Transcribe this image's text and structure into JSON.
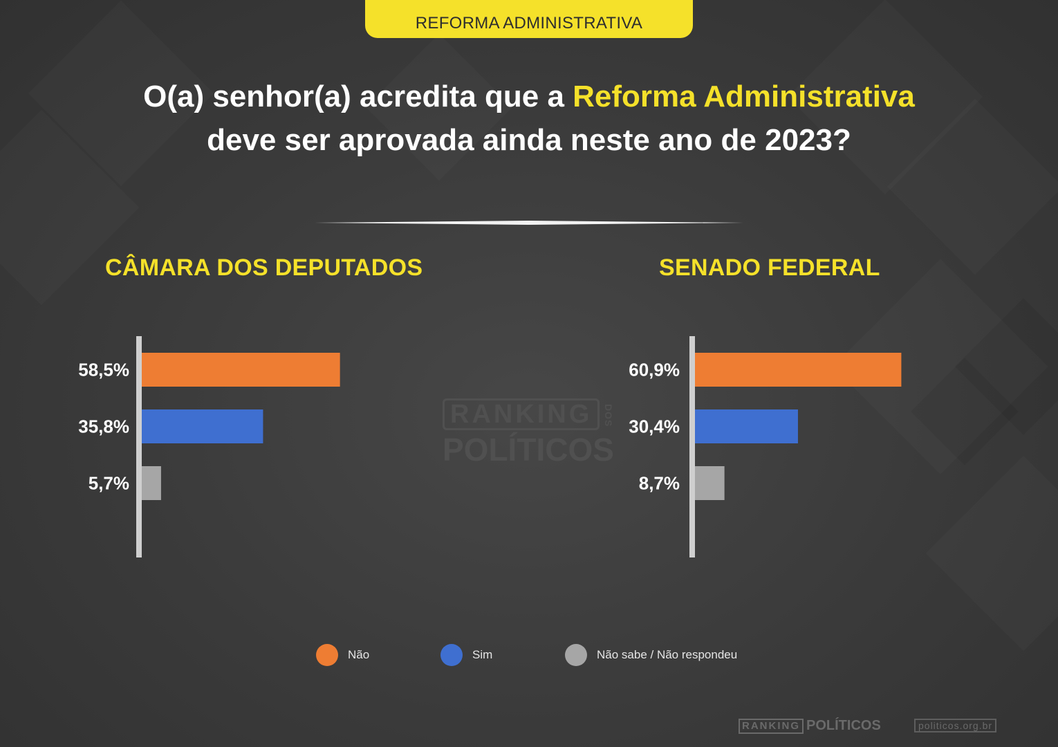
{
  "header": {
    "badge": "REFORMA ADMINISTRATIVA"
  },
  "question": {
    "part1": "O(a) senhor(a) acredita que a ",
    "highlight": "Reforma Administrativa",
    "part2": "deve ser aprovada ainda neste ano de 2023?"
  },
  "colors": {
    "accent": "#f5e12a",
    "nao": "#ee7d33",
    "sim": "#3f6fd0",
    "nao_sabe": "#a6a6a6",
    "axis": "#cfcfcf"
  },
  "chart_data": [
    {
      "type": "bar",
      "orientation": "horizontal",
      "title": "CÂMARA DOS DEPUTADOS",
      "categories": [
        "Não",
        "Sim",
        "Não sabe / Não respondeu"
      ],
      "values": [
        58.5,
        35.8,
        5.7
      ],
      "value_labels": [
        "58,5%",
        "35,8%",
        "5,7%"
      ],
      "unit": "%"
    },
    {
      "type": "bar",
      "orientation": "horizontal",
      "title": "SENADO FEDERAL",
      "categories": [
        "Não",
        "Sim",
        "Não sabe / Não respondeu"
      ],
      "values": [
        60.9,
        30.4,
        8.7
      ],
      "value_labels": [
        "60,9%",
        "30,4%",
        "8,7%"
      ],
      "unit": "%"
    }
  ],
  "legend": [
    {
      "label": "Não",
      "color": "#ee7d33"
    },
    {
      "label": "Sim",
      "color": "#3f6fd0"
    },
    {
      "label": "Não sabe / Não respondeu",
      "color": "#a6a6a6"
    }
  ],
  "watermark": {
    "top": "RANKING",
    "dos": "DOS",
    "bottom": "POLÍTICOS"
  },
  "footer": {
    "logo_box": "RANKING",
    "logo_text": "POLÍTICOS",
    "url": "politicos.org.br"
  }
}
